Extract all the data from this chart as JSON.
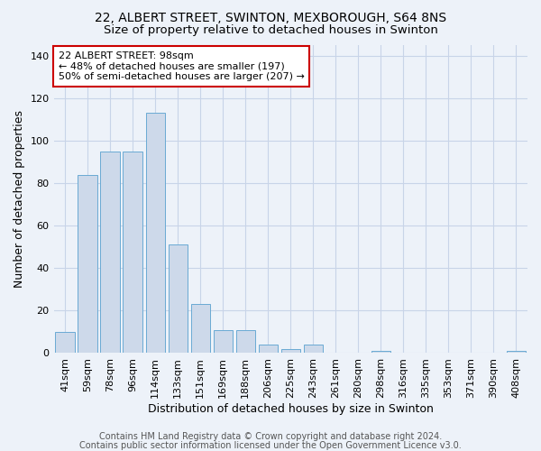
{
  "title_line1": "22, ALBERT STREET, SWINTON, MEXBOROUGH, S64 8NS",
  "title_line2": "Size of property relative to detached houses in Swinton",
  "xlabel": "Distribution of detached houses by size in Swinton",
  "ylabel": "Number of detached properties",
  "categories": [
    "41sqm",
    "59sqm",
    "78sqm",
    "96sqm",
    "114sqm",
    "133sqm",
    "151sqm",
    "169sqm",
    "188sqm",
    "206sqm",
    "225sqm",
    "243sqm",
    "261sqm",
    "280sqm",
    "298sqm",
    "316sqm",
    "335sqm",
    "353sqm",
    "371sqm",
    "390sqm",
    "408sqm"
  ],
  "values": [
    10,
    84,
    95,
    95,
    113,
    51,
    23,
    11,
    11,
    4,
    2,
    4,
    0,
    0,
    1,
    0,
    0,
    0,
    0,
    0,
    1
  ],
  "bar_color": "#cdd9ea",
  "bar_edge_color": "#6aaad4",
  "grid_color": "#c8d4e8",
  "background_color": "#edf2f9",
  "annotation_text": "22 ALBERT STREET: 98sqm\n← 48% of detached houses are smaller (197)\n50% of semi-detached houses are larger (207) →",
  "annotation_box_color": "white",
  "annotation_box_edge": "#cc0000",
  "ylim": [
    0,
    145
  ],
  "yticks": [
    0,
    20,
    40,
    60,
    80,
    100,
    120,
    140
  ],
  "footer_line1": "Contains HM Land Registry data © Crown copyright and database right 2024.",
  "footer_line2": "Contains public sector information licensed under the Open Government Licence v3.0.",
  "title_fontsize": 10,
  "subtitle_fontsize": 9.5,
  "axis_label_fontsize": 9,
  "tick_fontsize": 8,
  "footer_fontsize": 7
}
